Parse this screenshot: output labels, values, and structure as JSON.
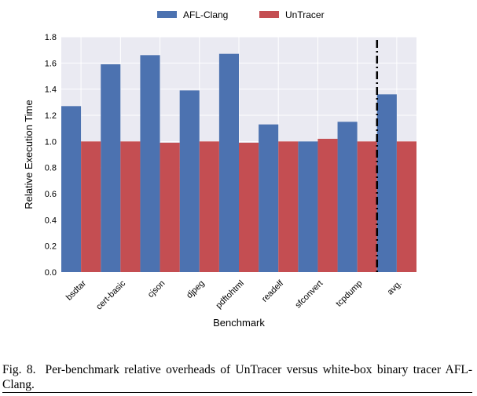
{
  "chart_data": {
    "type": "bar",
    "categories": [
      "bsdtar",
      "cert-basic",
      "cjson",
      "djpeg",
      "pdftohtml",
      "readelf",
      "sfconvert",
      "tcpdump",
      "avg."
    ],
    "series": [
      {
        "name": "AFL-Clang",
        "color": "#4c72b0",
        "values": [
          1.27,
          1.59,
          1.66,
          1.39,
          1.67,
          1.13,
          1.0,
          1.15,
          1.36
        ]
      },
      {
        "name": "UnTracer",
        "color": "#c44e52",
        "values": [
          1.0,
          1.0,
          0.99,
          1.0,
          0.99,
          1.0,
          1.02,
          1.0,
          1.0
        ]
      }
    ],
    "xlabel": "Benchmark",
    "ylabel": "Relative Execution Time",
    "ylim": [
      0,
      1.8
    ],
    "yticks": [
      "0.0",
      "0.2",
      "0.4",
      "0.6",
      "0.8",
      "1.0",
      "1.2",
      "1.4",
      "1.6",
      "1.8"
    ],
    "grid": true,
    "legend_position": "top-center",
    "plot_background": "#eaeaf2",
    "separator_before": "avg."
  },
  "caption": {
    "number": "Fig. 8.",
    "text": "Per-benchmark relative overheads of UnTracer versus white-box binary tracer AFL-Clang."
  }
}
